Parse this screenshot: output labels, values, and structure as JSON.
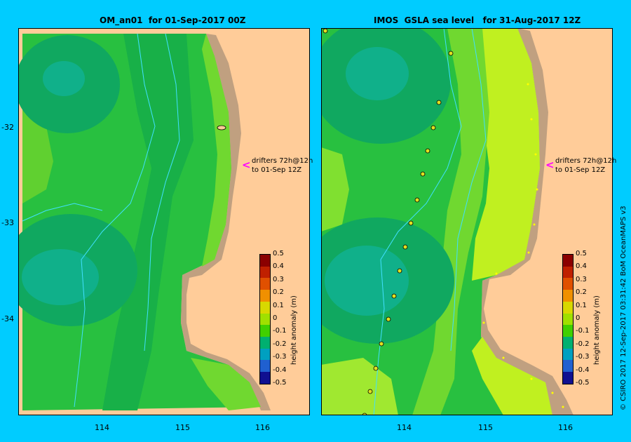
{
  "left_panel": {
    "title": "OM_an01  for 01-Sep-2017 00Z",
    "drifter_line1": "drifters 72h@12h",
    "drifter_line2": "to 01-Sep 12Z"
  },
  "right_panel": {
    "title": "IMOS  GSLA sea level   for 31-Aug-2017 12Z",
    "drifter_line1": "drifters 72h@12h",
    "drifter_line2": "to 01-Sep 12Z"
  },
  "axes": {
    "lat_ticks": [
      "-32",
      "-33",
      "-34"
    ],
    "lon_ticks": [
      "114",
      "115",
      "116"
    ]
  },
  "colorbar": {
    "label": "height anomaly (m)",
    "ticks": [
      "0.5",
      "0.4",
      "0.3",
      "0.2",
      "0.1",
      "0",
      "-0.1",
      "-0.2",
      "-0.3",
      "-0.4",
      "-0.5"
    ],
    "colors": [
      "#8b0000",
      "#c02000",
      "#e05000",
      "#f09000",
      "#d8d800",
      "#a0e000",
      "#40d000",
      "#00b070",
      "#00a0c0",
      "#2060d0",
      "#101090"
    ]
  },
  "credit": "© CSIRO 2017   12-Sep-2017 03:31:42 BoM OceanMAPS v3",
  "colors": {
    "land": "#ffcc99",
    "coast": "#c0a080",
    "background": "#00ccff"
  }
}
